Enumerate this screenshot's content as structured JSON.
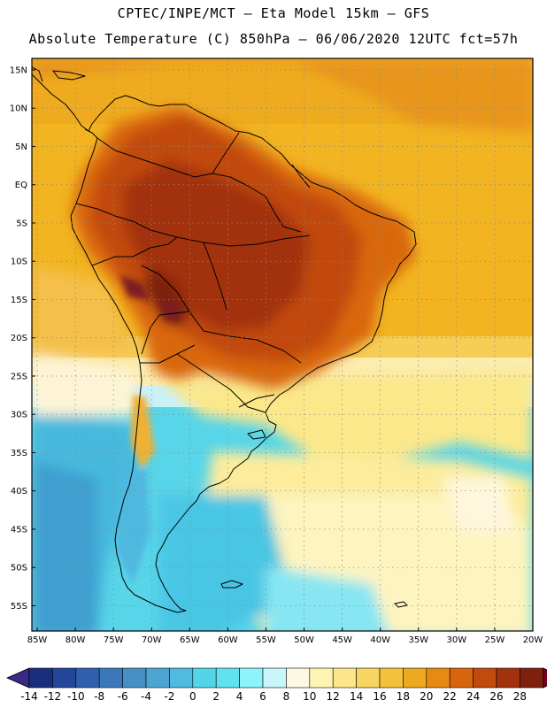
{
  "header": {
    "line1": "CPTEC/INPE/MCT –  Eta Model 15km – GFS",
    "line2": "Absolute Temperature (C) 850hPa – 06/06/2020 12UTC fct=57h"
  },
  "map": {
    "lat_labels": [
      "15N",
      "10N",
      "5N",
      "EQ",
      "5S",
      "10S",
      "15S",
      "20S",
      "25S",
      "30S",
      "35S",
      "40S",
      "45S",
      "50S",
      "55S"
    ],
    "lat_values": [
      15,
      10,
      5,
      0,
      -5,
      -10,
      -15,
      -20,
      -25,
      -30,
      -35,
      -40,
      -45,
      -50,
      -55
    ],
    "lon_labels": [
      "85W",
      "80W",
      "75W",
      "70W",
      "65W",
      "60W",
      "55W",
      "50W",
      "45W",
      "40W",
      "35W",
      "30W",
      "25W",
      "20W"
    ],
    "lon_values": [
      -85,
      -80,
      -75,
      -70,
      -65,
      -60,
      -55,
      -50,
      -45,
      -40,
      -35,
      -30,
      -25,
      -20
    ],
    "extent": {
      "lon_min": -85.7,
      "lon_max": -20,
      "lat_min": -58.3,
      "lat_max": 16.5
    }
  },
  "colorbar": {
    "labels": [
      "-14",
      "-12",
      "-10",
      "-8",
      "-6",
      "-4",
      "-2",
      "0",
      "2",
      "4",
      "6",
      "8",
      "10",
      "12",
      "14",
      "16",
      "18",
      "20",
      "22",
      "24",
      "26",
      "28"
    ],
    "colors": [
      "#1a2e7e",
      "#23459a",
      "#2f5fae",
      "#3b78bb",
      "#4790c6",
      "#4da5d3",
      "#4fbcdf",
      "#52d4e9",
      "#5fe3f0",
      "#8ef4fb",
      "#c9f6fb",
      "#fdf8e3",
      "#fdf4b4",
      "#fbe689",
      "#f8d560",
      "#f3c23d",
      "#eeaa1e",
      "#e68a12",
      "#d8650c",
      "#c14a0c",
      "#a2320c",
      "#7e200d"
    ],
    "under_color": "#3a2a86",
    "over_color": "#76001f"
  },
  "legend_colors": {
    "border": "#000000",
    "grid": "#888888"
  }
}
